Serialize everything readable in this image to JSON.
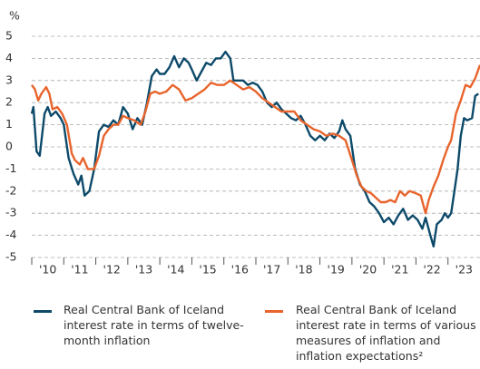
{
  "chart_data": {
    "type": "line",
    "y_unit": "%",
    "xlim": [
      2010,
      2024
    ],
    "xticks": [
      {
        "value": 2010,
        "label": "'10"
      },
      {
        "value": 2011,
        "label": "'11"
      },
      {
        "value": 2012,
        "label": "'12"
      },
      {
        "value": 2013,
        "label": "'13"
      },
      {
        "value": 2014,
        "label": "'14"
      },
      {
        "value": 2015,
        "label": "'15"
      },
      {
        "value": 2016,
        "label": "'16"
      },
      {
        "value": 2017,
        "label": "'17"
      },
      {
        "value": 2018,
        "label": "'18"
      },
      {
        "value": 2019,
        "label": "'19"
      },
      {
        "value": 2020,
        "label": "'20"
      },
      {
        "value": 2021,
        "label": "'21"
      },
      {
        "value": 2022,
        "label": "'22"
      },
      {
        "value": 2023,
        "label": "'23"
      }
    ],
    "ylim": [
      -5,
      5
    ],
    "yticks": [
      -5,
      -4,
      -3,
      -2,
      -1,
      0,
      1,
      2,
      3,
      4,
      5
    ],
    "grid": true,
    "series": [
      {
        "name": "Real Central Bank of Iceland interest rate in terms of twelve-month inflation",
        "color": "#0d4a6a",
        "x": [
          2010.0,
          2010.05,
          2010.15,
          2010.25,
          2010.4,
          2010.5,
          2010.6,
          2010.75,
          2010.9,
          2011.0,
          2011.15,
          2011.3,
          2011.45,
          2011.55,
          2011.65,
          2011.8,
          2011.95,
          2012.1,
          2012.25,
          2012.4,
          2012.55,
          2012.7,
          2012.85,
          2013.0,
          2013.15,
          2013.3,
          2013.45,
          2013.6,
          2013.75,
          2013.9,
          2014.0,
          2014.15,
          2014.3,
          2014.45,
          2014.6,
          2014.75,
          2014.9,
          2015.0,
          2015.15,
          2015.3,
          2015.45,
          2015.6,
          2015.75,
          2015.9,
          2016.05,
          2016.2,
          2016.3,
          2016.45,
          2016.6,
          2016.75,
          2016.9,
          2017.05,
          2017.2,
          2017.35,
          2017.5,
          2017.65,
          2017.8,
          2017.95,
          2018.1,
          2018.25,
          2018.4,
          2018.55,
          2018.7,
          2018.85,
          2019.0,
          2019.15,
          2019.3,
          2019.45,
          2019.6,
          2019.7,
          2019.8,
          2019.95,
          2020.1,
          2020.25,
          2020.4,
          2020.55,
          2020.7,
          2020.85,
          2021.0,
          2021.15,
          2021.3,
          2021.45,
          2021.6,
          2021.75,
          2021.9,
          2022.05,
          2022.2,
          2022.3,
          2022.45,
          2022.55,
          2022.65,
          2022.8,
          2022.9,
          2023.0,
          2023.1,
          2023.2,
          2023.3,
          2023.4,
          2023.5,
          2023.6,
          2023.75,
          2023.85,
          2023.95
        ],
        "values": [
          1.5,
          1.8,
          -0.2,
          -0.4,
          1.5,
          1.8,
          1.4,
          1.6,
          1.3,
          1.0,
          -0.5,
          -1.2,
          -1.7,
          -1.3,
          -2.2,
          -2.0,
          -1.0,
          0.7,
          1.0,
          0.9,
          1.2,
          1.0,
          1.8,
          1.5,
          0.8,
          1.3,
          1.0,
          2.0,
          3.2,
          3.5,
          3.3,
          3.3,
          3.6,
          4.1,
          3.6,
          4.0,
          3.8,
          3.5,
          3.0,
          3.4,
          3.8,
          3.7,
          4.0,
          4.0,
          4.3,
          4.0,
          3.0,
          3.0,
          3.0,
          2.8,
          2.9,
          2.8,
          2.5,
          2.0,
          1.8,
          2.0,
          1.7,
          1.5,
          1.3,
          1.2,
          1.4,
          1.0,
          0.5,
          0.3,
          0.5,
          0.3,
          0.6,
          0.4,
          0.7,
          1.2,
          0.8,
          0.5,
          -1.0,
          -1.7,
          -2.0,
          -2.5,
          -2.7,
          -3.0,
          -3.4,
          -3.2,
          -3.5,
          -3.1,
          -2.8,
          -3.3,
          -3.1,
          -3.3,
          -3.7,
          -3.2,
          -4.0,
          -4.5,
          -3.5,
          -3.3,
          -3.0,
          -3.2,
          -3.0,
          -2.0,
          -1.0,
          0.5,
          1.3,
          1.2,
          1.3,
          2.3,
          2.4
        ]
      },
      {
        "name": "Real Central Bank of Iceland interest rate in terms of various measures of inflation and inflation expectations²",
        "color": "#e8642c",
        "x": [
          2010.0,
          2010.1,
          2010.2,
          2010.3,
          2010.45,
          2010.55,
          2010.65,
          2010.8,
          2010.95,
          2011.1,
          2011.25,
          2011.35,
          2011.5,
          2011.6,
          2011.75,
          2011.95,
          2012.1,
          2012.25,
          2012.4,
          2012.55,
          2012.7,
          2012.85,
          2013.0,
          2013.2,
          2013.4,
          2013.55,
          2013.7,
          2013.85,
          2014.0,
          2014.2,
          2014.4,
          2014.6,
          2014.8,
          2015.0,
          2015.2,
          2015.4,
          2015.6,
          2015.8,
          2016.0,
          2016.2,
          2016.4,
          2016.6,
          2016.8,
          2017.0,
          2017.2,
          2017.4,
          2017.6,
          2017.8,
          2018.0,
          2018.2,
          2018.4,
          2018.6,
          2018.8,
          2019.0,
          2019.2,
          2019.4,
          2019.6,
          2019.8,
          2020.0,
          2020.15,
          2020.3,
          2020.45,
          2020.6,
          2020.75,
          2020.9,
          2021.05,
          2021.2,
          2021.35,
          2021.5,
          2021.65,
          2021.8,
          2022.0,
          2022.15,
          2022.3,
          2022.4,
          2022.55,
          2022.7,
          2022.85,
          2023.0,
          2023.1,
          2023.25,
          2023.4,
          2023.55,
          2023.7,
          2023.85,
          2024.0
        ],
        "values": [
          2.8,
          2.6,
          2.1,
          2.4,
          2.7,
          2.4,
          1.7,
          1.8,
          1.5,
          1.0,
          -0.3,
          -0.6,
          -0.8,
          -0.5,
          -1.0,
          -1.0,
          -0.4,
          0.5,
          0.8,
          1.0,
          1.0,
          1.4,
          1.3,
          1.2,
          1.0,
          1.6,
          2.4,
          2.5,
          2.4,
          2.5,
          2.8,
          2.6,
          2.1,
          2.2,
          2.4,
          2.6,
          2.9,
          2.8,
          2.8,
          3.0,
          2.8,
          2.6,
          2.7,
          2.5,
          2.2,
          2.0,
          1.8,
          1.6,
          1.6,
          1.6,
          1.2,
          1.0,
          0.8,
          0.7,
          0.5,
          0.6,
          0.5,
          0.3,
          -0.6,
          -1.3,
          -1.8,
          -2.0,
          -2.1,
          -2.3,
          -2.5,
          -2.5,
          -2.4,
          -2.5,
          -2.0,
          -2.2,
          -2.0,
          -2.1,
          -2.2,
          -3.0,
          -2.4,
          -1.8,
          -1.3,
          -0.6,
          0.0,
          0.3,
          1.5,
          2.1,
          2.8,
          2.7,
          3.1,
          3.7
        ]
      }
    ]
  }
}
